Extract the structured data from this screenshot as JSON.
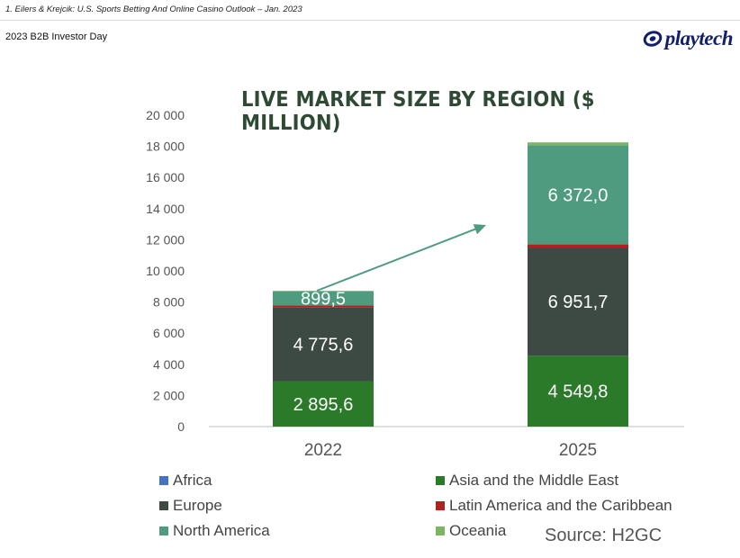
{
  "header": {
    "footnote": "1. Eilers & Krejcik: U.S. Sports Betting And Online Casino Outlook – Jan. 2023",
    "subtitle": "2023 B2B Investor Day",
    "logo_text": "playtech"
  },
  "colors": {
    "Africa": "#4472c4",
    "Asia and the Middle East": "#2a7a2a",
    "Europe": "#3d4a44",
    "Latin America and the Caribbean": "#b32020",
    "North America": "#4f9b80",
    "Oceania": "#7bb561",
    "title": "#2e4a35",
    "arrow": "#4f9b80"
  },
  "chart_data": {
    "type": "bar",
    "stacked": true,
    "title": "LIVE MARKET SIZE BY REGION ($ MILLION)",
    "categories": [
      "2022",
      "2025"
    ],
    "ylim": [
      0,
      20000
    ],
    "yticks": [
      0,
      2000,
      4000,
      6000,
      8000,
      10000,
      12000,
      14000,
      16000,
      18000,
      20000
    ],
    "ytick_labels": [
      "0",
      "2 000",
      "4 000",
      "6 000",
      "8 000",
      "10 000",
      "12 000",
      "14 000",
      "16 000",
      "18 000",
      "20 000"
    ],
    "grid": false,
    "legend_position": "bottom",
    "series": [
      {
        "name": "Asia and the Middle East",
        "values": [
          2895.6,
          4549.8
        ],
        "labels": [
          "2 895,6",
          "4 549,8"
        ]
      },
      {
        "name": "Europe",
        "values": [
          4775.6,
          6951.7
        ],
        "labels": [
          "4 775,6",
          "6 951,7"
        ]
      },
      {
        "name": "Latin America and the Caribbean",
        "values": [
          120,
          200
        ],
        "labels": [
          "",
          ""
        ]
      },
      {
        "name": "North America",
        "values": [
          899.5,
          6372.0
        ],
        "labels": [
          "899,5",
          "6 372,0"
        ]
      },
      {
        "name": "Oceania",
        "values": [
          30,
          180
        ],
        "labels": [
          "",
          ""
        ]
      },
      {
        "name": "Africa",
        "values": [
          0,
          0
        ],
        "labels": [
          "",
          ""
        ]
      }
    ],
    "legend": [
      "Africa",
      "Asia and the Middle East",
      "Europe",
      "Latin America and the Caribbean",
      "North America",
      "Oceania"
    ],
    "annotation": "growth arrow from 2022 to 2025",
    "source": "Source: H2GC"
  }
}
